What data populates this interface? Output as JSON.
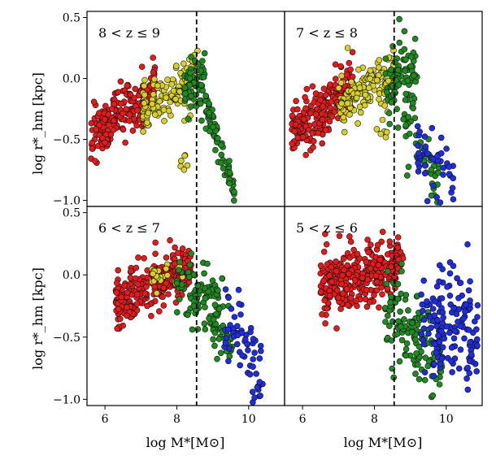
{
  "figure": {
    "ylabel": "log r*_hm [kpc]",
    "xlabel": "log M*[M⊙]"
  },
  "colors": {
    "red": "#e41a1c",
    "yellow": "#d8d02a",
    "green": "#1f8a1f",
    "blue": "#1f2ce0",
    "edge": "#111111"
  },
  "chart_data": [
    {
      "type": "scatter",
      "panel": "top-left",
      "label": "8 < z ≤ 9",
      "xlim": [
        5.5,
        11.0
      ],
      "ylim": [
        -1.05,
        0.55
      ],
      "vline_x": 8.55,
      "yticks": [
        "0.5",
        "0.0",
        "−0.5",
        "−1.0"
      ],
      "ytick_values": [
        0.5,
        0.0,
        -0.5,
        -1.0
      ],
      "xticks": [],
      "xtick_values": [],
      "clouds": [
        {
          "color": "red",
          "n": 220,
          "x": [
            5.6,
            7.4
          ],
          "y0": -0.48,
          "slope": 0.22,
          "spread": 0.1
        },
        {
          "color": "yellow",
          "n": 160,
          "x": [
            7.0,
            8.6
          ],
          "y0": -0.25,
          "slope": 0.16,
          "spread": 0.1
        },
        {
          "color": "yellow",
          "n": 6,
          "x": [
            8.1,
            8.3
          ],
          "y0": -0.68,
          "slope": 0.0,
          "spread": 0.05
        },
        {
          "color": "green",
          "n": 60,
          "x": [
            8.2,
            8.8
          ],
          "y0": -0.05,
          "slope": 0.05,
          "spread": 0.12
        },
        {
          "color": "green",
          "n": 70,
          "x": [
            8.8,
            9.6
          ],
          "y0": -0.2,
          "slope": -0.9,
          "spread": 0.07
        }
      ]
    },
    {
      "type": "scatter",
      "panel": "top-right",
      "label": "7 < z ≤ 8",
      "xlim": [
        5.5,
        11.0
      ],
      "ylim": [
        -1.05,
        0.55
      ],
      "vline_x": 8.55,
      "yticks": [],
      "ytick_values": [],
      "xticks": [],
      "xtick_values": [],
      "clouds": [
        {
          "color": "red",
          "n": 230,
          "x": [
            5.7,
            7.4
          ],
          "y0": -0.45,
          "slope": 0.22,
          "spread": 0.1
        },
        {
          "color": "yellow",
          "n": 150,
          "x": [
            7.0,
            8.6
          ],
          "y0": -0.22,
          "slope": 0.18,
          "spread": 0.1
        },
        {
          "color": "yellow",
          "n": 8,
          "x": [
            8.0,
            8.4
          ],
          "y0": -0.35,
          "slope": 0.0,
          "spread": 0.08
        },
        {
          "color": "green",
          "n": 90,
          "x": [
            8.3,
            9.2
          ],
          "y0": -0.05,
          "slope": 0.1,
          "spread": 0.15
        },
        {
          "color": "green",
          "n": 40,
          "x": [
            8.8,
            9.8
          ],
          "y0": -0.4,
          "slope": -0.4,
          "spread": 0.12
        },
        {
          "color": "blue",
          "n": 45,
          "x": [
            9.2,
            10.2
          ],
          "y0": -0.55,
          "slope": -0.35,
          "spread": 0.13
        }
      ]
    },
    {
      "type": "scatter",
      "panel": "bottom-left",
      "label": "6 < z ≤ 7",
      "xlim": [
        5.5,
        11.0
      ],
      "ylim": [
        -1.05,
        0.55
      ],
      "vline_x": 8.55,
      "yticks": [
        "0.5",
        "0.0",
        "−0.5",
        "−1.0"
      ],
      "ytick_values": [
        0.5,
        0.0,
        -0.5,
        -1.0
      ],
      "xticks": [
        "6",
        "8",
        "10"
      ],
      "xtick_values": [
        6,
        8,
        10
      ],
      "clouds": [
        {
          "color": "red",
          "n": 280,
          "x": [
            6.3,
            8.4
          ],
          "y0": -0.22,
          "slope": 0.15,
          "spread": 0.1
        },
        {
          "color": "yellow",
          "n": 25,
          "x": [
            7.3,
            8.2
          ],
          "y0": -0.02,
          "slope": 0.05,
          "spread": 0.06
        },
        {
          "color": "green",
          "n": 100,
          "x": [
            8.0,
            9.3
          ],
          "y0": -0.05,
          "slope": -0.15,
          "spread": 0.14
        },
        {
          "color": "green",
          "n": 30,
          "x": [
            9.0,
            9.6
          ],
          "y0": -0.4,
          "slope": -0.3,
          "spread": 0.1
        },
        {
          "color": "blue",
          "n": 65,
          "x": [
            9.3,
            10.4
          ],
          "y0": -0.3,
          "slope": -0.45,
          "spread": 0.14
        }
      ]
    },
    {
      "type": "scatter",
      "panel": "bottom-right",
      "label": "5 < z ≤ 6",
      "xlim": [
        5.5,
        11.0
      ],
      "ylim": [
        -1.05,
        0.55
      ],
      "vline_x": 8.55,
      "yticks": [],
      "ytick_values": [],
      "xticks": [
        "6",
        "8",
        "10"
      ],
      "xtick_values": [
        6,
        8,
        10
      ],
      "clouds": [
        {
          "color": "red",
          "n": 330,
          "x": [
            6.5,
            8.8
          ],
          "y0": -0.12,
          "slope": 0.1,
          "spread": 0.13
        },
        {
          "color": "green",
          "n": 130,
          "x": [
            8.3,
            9.9
          ],
          "y0": -0.25,
          "slope": -0.3,
          "spread": 0.17
        },
        {
          "color": "blue",
          "n": 150,
          "x": [
            9.3,
            10.9
          ],
          "y0": -0.38,
          "slope": -0.05,
          "spread": 0.22
        }
      ]
    }
  ]
}
